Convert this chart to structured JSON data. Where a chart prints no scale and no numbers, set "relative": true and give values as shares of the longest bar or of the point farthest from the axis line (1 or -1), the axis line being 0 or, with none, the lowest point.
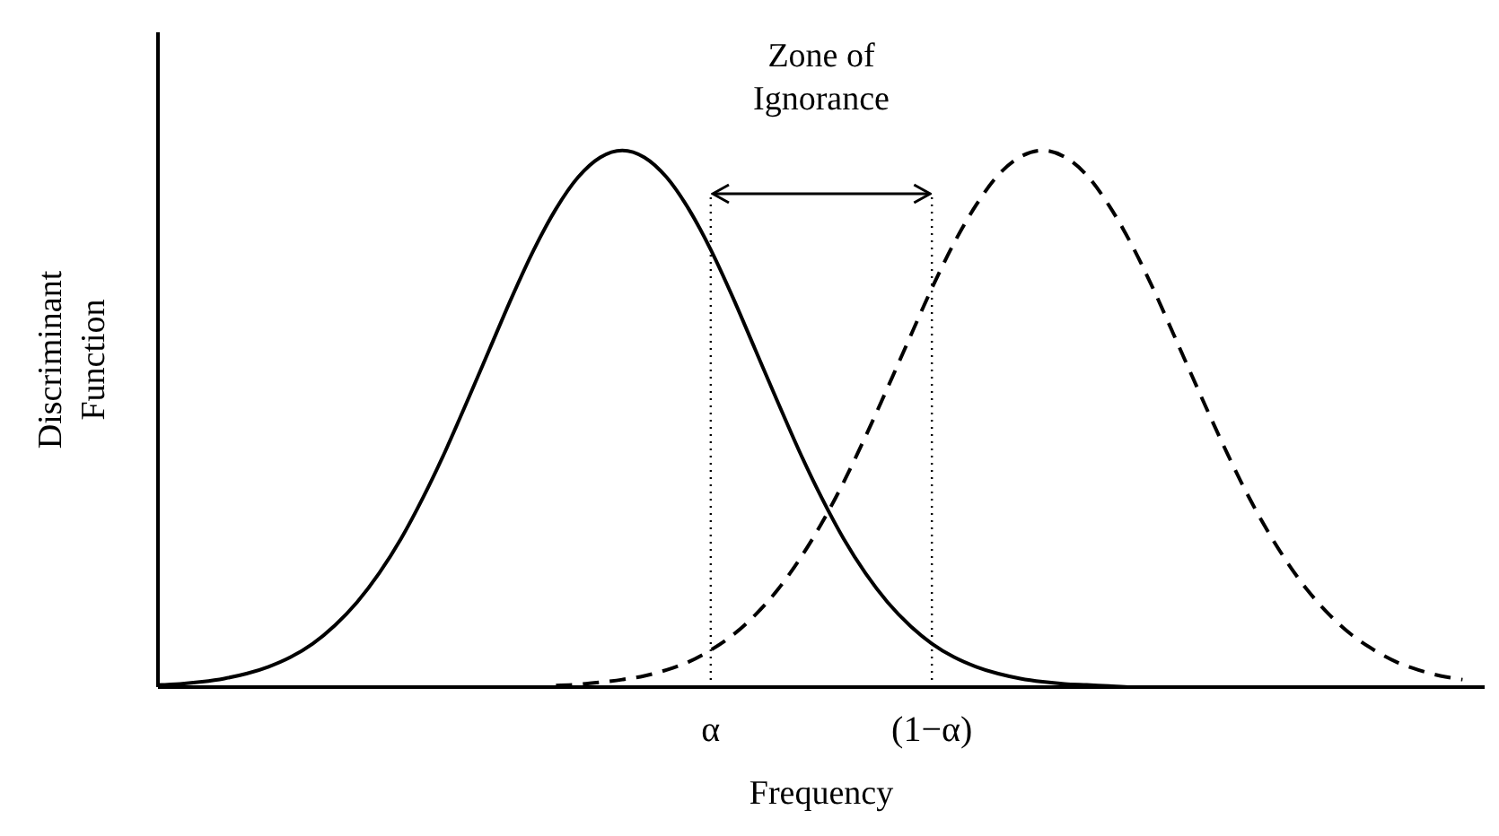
{
  "chart_data": {
    "type": "line",
    "relative": true,
    "xlabel": "Frequency",
    "ylabel": "Discriminant Function",
    "categories": [
      null,
      null,
      null,
      null,
      null,
      null,
      null,
      null,
      null,
      null,
      null,
      null,
      null,
      null,
      null,
      null,
      null,
      null,
      null,
      null,
      null,
      null,
      null,
      null,
      null,
      "α",
      null,
      null,
      null,
      null,
      null,
      null,
      null,
      null,
      null,
      "(1−α)",
      null,
      null,
      null,
      null,
      null,
      null,
      null,
      null,
      null,
      null,
      null,
      null,
      null,
      null,
      null,
      null,
      null,
      null,
      null,
      null,
      null,
      null,
      null,
      null,
      null
    ],
    "series": [
      {
        "color": "#000000",
        "line_style": "solid",
        "values": [
          0.004,
          0.006,
          0.01,
          0.016,
          0.025,
          0.038,
          0.056,
          0.081,
          0.115,
          0.158,
          0.212,
          0.277,
          0.354,
          0.44,
          0.534,
          0.63,
          0.726,
          0.815,
          0.891,
          0.95,
          0.987,
          1,
          0.987,
          0.95,
          0.891,
          0.815,
          0.726,
          0.63,
          0.534,
          0.44,
          0.354,
          0.277,
          0.212,
          0.158,
          0.115,
          0.081,
          0.056,
          0.038,
          0.025,
          0.016,
          0.01,
          0.006,
          0.004,
          0.002,
          0,
          0,
          0,
          0,
          0,
          0,
          0,
          0,
          0,
          0,
          0,
          0,
          0,
          0,
          0,
          0,
          0
        ]
      },
      {
        "color": "#000000",
        "line_style": "dashed",
        "values": [
          null,
          null,
          null,
          null,
          null,
          null,
          null,
          null,
          null,
          null,
          null,
          null,
          null,
          null,
          null,
          null,
          null,
          null,
          0.003,
          0.005,
          0.009,
          0.014,
          0.021,
          0.032,
          0.047,
          0.069,
          0.097,
          0.134,
          0.18,
          0.237,
          0.304,
          0.381,
          0.467,
          0.558,
          0.651,
          0.743,
          0.827,
          0.898,
          0.954,
          0.988,
          1,
          0.988,
          0.954,
          0.898,
          0.827,
          0.743,
          0.651,
          0.558,
          0.467,
          0.381,
          0.304,
          0.237,
          0.18,
          0.134,
          0.097,
          0.069,
          0.047,
          0.032,
          0.021,
          0.014,
          null
        ]
      }
    ],
    "ref_lines": [
      {
        "axis": "x",
        "value": "α",
        "line_style": "dotted"
      },
      {
        "axis": "x",
        "value": "(1−α)",
        "line_style": "dotted"
      }
    ],
    "annotations": [
      "Zone of Ignorance"
    ]
  }
}
